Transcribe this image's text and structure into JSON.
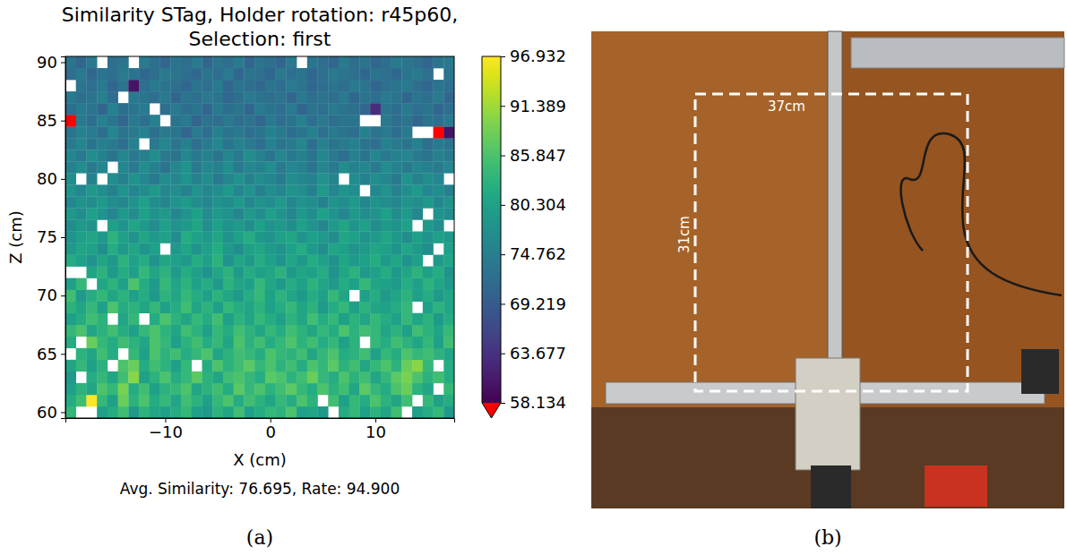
{
  "figure": {
    "panel_labels": [
      "(a)",
      "(b)"
    ]
  },
  "chart_data": {
    "type": "heatmap",
    "title": "Similarity STag, Holder rotation: r45p60,\nSelection: first",
    "x_label": "X (cm)",
    "y_label": "Z (cm)",
    "annotation": "Avg. Similarity: 76.695, Rate: 94.900",
    "x": [
      -19,
      -18,
      -17,
      -16,
      -15,
      -14,
      -13,
      -12,
      -11,
      -10,
      -9,
      -8,
      -7,
      -6,
      -5,
      -4,
      -3,
      -2,
      -1,
      0,
      1,
      2,
      3,
      4,
      5,
      6,
      7,
      8,
      9,
      10,
      11,
      12,
      13,
      14,
      15,
      16,
      17
    ],
    "y": [
      60,
      61,
      62,
      63,
      64,
      65,
      66,
      67,
      68,
      69,
      70,
      71,
      72,
      73,
      74,
      75,
      76,
      77,
      78,
      79,
      80,
      81,
      82,
      83,
      84,
      85,
      86,
      87,
      88,
      89,
      90
    ],
    "cells": [
      [
        84,
        null,
        null,
        80,
        82,
        85,
        79,
        83,
        81,
        80,
        82,
        84,
        80,
        79,
        83,
        81,
        85,
        80,
        82,
        84,
        83,
        86,
        80,
        81,
        79,
        null,
        82,
        84,
        80,
        83,
        81,
        85,
        null,
        80,
        82,
        84,
        79
      ],
      [
        82,
        85,
        97,
        84,
        80,
        88,
        83,
        86,
        82,
        84,
        81,
        85,
        83,
        80,
        84,
        86,
        82,
        85,
        83,
        81,
        84,
        82,
        86,
        83,
        null,
        85,
        80,
        84,
        82,
        86,
        83,
        81,
        85,
        null,
        84,
        80,
        82
      ],
      [
        80,
        83,
        81,
        86,
        84,
        89,
        82,
        85,
        80,
        83,
        84,
        86,
        81,
        83,
        85,
        82,
        87,
        84,
        86,
        83,
        85,
        87,
        84,
        82,
        86,
        83,
        85,
        81,
        87,
        84,
        82,
        86,
        88,
        83,
        81,
        null,
        84
      ],
      [
        79,
        null,
        82,
        84,
        81,
        85,
        90,
        80,
        83,
        86,
        82,
        84,
        87,
        83,
        81,
        85,
        86,
        84,
        82,
        87,
        86,
        83,
        85,
        88,
        84,
        82,
        86,
        83,
        85,
        81,
        84,
        87,
        89,
        86,
        83,
        85,
        82
      ],
      [
        81,
        84,
        80,
        83,
        null,
        86,
        88,
        82,
        85,
        83,
        80,
        84,
        null,
        82,
        86,
        83,
        85,
        87,
        84,
        86,
        83,
        85,
        82,
        86,
        84,
        87,
        83,
        85,
        81,
        84,
        86,
        83,
        88,
        90,
        84,
        null,
        82
      ],
      [
        null,
        83,
        81,
        85,
        82,
        null,
        84,
        80,
        86,
        83,
        85,
        82,
        84,
        86,
        81,
        83,
        85,
        84,
        82,
        86,
        84,
        83,
        85,
        81,
        84,
        86,
        82,
        83,
        85,
        80,
        84,
        82,
        86,
        84,
        85,
        83,
        81
      ],
      [
        82,
        null,
        88,
        84,
        82,
        85,
        83,
        81,
        86,
        84,
        80,
        83,
        85,
        82,
        84,
        81,
        86,
        83,
        85,
        82,
        84,
        86,
        83,
        85,
        82,
        84,
        80,
        83,
        null,
        84,
        82,
        85,
        83,
        81,
        84,
        80,
        85
      ],
      [
        84,
        86,
        81,
        83,
        85,
        82,
        80,
        84,
        86,
        83,
        81,
        85,
        83,
        80,
        84,
        82,
        85,
        83,
        81,
        84,
        82,
        85,
        83,
        81,
        84,
        82,
        86,
        83,
        85,
        84,
        81,
        83,
        80,
        85,
        83,
        81,
        84
      ],
      [
        80,
        82,
        85,
        83,
        null,
        81,
        84,
        null,
        82,
        86,
        83,
        81,
        84,
        82,
        85,
        80,
        83,
        81,
        84,
        82,
        80,
        83,
        81,
        85,
        82,
        84,
        80,
        83,
        81,
        84,
        82,
        80,
        84,
        81,
        83,
        79,
        82
      ],
      [
        83,
        81,
        84,
        80,
        86,
        82,
        83,
        81,
        84,
        80,
        82,
        85,
        81,
        83,
        80,
        84,
        82,
        81,
        83,
        80,
        82,
        84,
        81,
        83,
        79,
        82,
        84,
        80,
        83,
        81,
        80,
        82,
        84,
        null,
        80,
        83,
        81
      ],
      [
        85,
        79,
        82,
        84,
        81,
        83,
        80,
        82,
        79,
        83,
        81,
        84,
        82,
        80,
        83,
        81,
        79,
        82,
        84,
        80,
        83,
        81,
        79,
        82,
        80,
        84,
        81,
        null,
        80,
        82,
        79,
        81,
        83,
        80,
        82,
        79,
        81
      ],
      [
        80,
        84,
        null,
        81,
        83,
        80,
        86,
        82,
        79,
        84,
        81,
        83,
        80,
        82,
        79,
        83,
        81,
        80,
        84,
        81,
        79,
        82,
        80,
        83,
        81,
        79,
        82,
        80,
        84,
        81,
        80,
        79,
        82,
        80,
        83,
        81,
        79
      ],
      [
        null,
        null,
        81,
        83,
        79,
        82,
        80,
        84,
        81,
        83,
        79,
        82,
        80,
        78,
        81,
        83,
        79,
        82,
        80,
        81,
        83,
        79,
        81,
        80,
        82,
        78,
        81,
        83,
        79,
        80,
        82,
        79,
        81,
        83,
        80,
        82,
        78
      ],
      [
        82,
        80,
        78,
        81,
        79,
        83,
        80,
        82,
        78,
        81,
        80,
        79,
        82,
        80,
        83,
        78,
        81,
        79,
        82,
        80,
        78,
        81,
        79,
        82,
        80,
        78,
        81,
        79,
        80,
        82,
        79,
        81,
        78,
        80,
        null,
        79,
        81
      ],
      [
        79,
        81,
        80,
        77,
        82,
        79,
        81,
        78,
        80,
        null,
        79,
        81,
        78,
        80,
        82,
        79,
        77,
        80,
        81,
        79,
        78,
        80,
        82,
        79,
        77,
        81,
        80,
        78,
        79,
        81,
        80,
        78,
        81,
        79,
        77,
        null,
        80
      ],
      [
        78,
        80,
        81,
        79,
        83,
        80,
        78,
        81,
        79,
        80,
        77,
        82,
        80,
        79,
        81,
        78,
        80,
        82,
        79,
        78,
        80,
        81,
        78,
        80,
        79,
        77,
        81,
        80,
        78,
        79,
        81,
        79,
        77,
        80,
        78,
        80,
        79
      ],
      [
        77,
        79,
        78,
        null,
        80,
        78,
        81,
        79,
        77,
        80,
        78,
        79,
        81,
        77,
        80,
        78,
        79,
        77,
        80,
        78,
        79,
        77,
        80,
        78,
        76,
        79,
        81,
        78,
        80,
        77,
        79,
        78,
        80,
        null,
        79,
        77,
        null
      ],
      [
        79,
        77,
        80,
        78,
        76,
        79,
        77,
        80,
        78,
        79,
        76,
        78,
        80,
        77,
        79,
        78,
        76,
        79,
        77,
        80,
        78,
        76,
        79,
        77,
        80,
        78,
        76,
        79,
        77,
        78,
        80,
        77,
        79,
        76,
        null,
        78,
        77
      ],
      [
        76,
        78,
        77,
        79,
        77,
        76,
        78,
        80,
        77,
        76,
        78,
        79,
        77,
        76,
        78,
        77,
        79,
        76,
        78,
        77,
        79,
        76,
        78,
        77,
        75,
        78,
        77,
        79,
        76,
        78,
        77,
        76,
        78,
        77,
        79,
        76,
        78
      ],
      [
        78,
        76,
        79,
        77,
        75,
        78,
        76,
        77,
        79,
        76,
        77,
        75,
        78,
        76,
        77,
        79,
        76,
        78,
        75,
        77,
        76,
        78,
        77,
        75,
        79,
        76,
        78,
        77,
        null,
        76,
        78,
        75,
        77,
        79,
        76,
        77,
        75
      ],
      [
        77,
        null,
        75,
        null,
        77,
        75,
        78,
        76,
        74,
        77,
        76,
        78,
        75,
        77,
        74,
        76,
        78,
        75,
        77,
        76,
        74,
        77,
        76,
        75,
        78,
        76,
        null,
        77,
        75,
        77,
        76,
        74,
        78,
        75,
        77,
        76,
        null
      ],
      [
        75,
        77,
        74,
        76,
        null,
        76,
        74,
        77,
        75,
        73,
        76,
        78,
        74,
        76,
        75,
        77,
        74,
        76,
        75,
        77,
        74,
        76,
        75,
        73,
        76,
        74,
        77,
        75,
        76,
        74,
        77,
        75,
        74,
        76,
        75,
        74,
        76
      ],
      [
        76,
        74,
        77,
        75,
        73,
        76,
        74,
        75,
        77,
        74,
        73,
        76,
        74,
        75,
        73,
        76,
        74,
        77,
        75,
        73,
        76,
        74,
        75,
        73,
        76,
        74,
        72,
        75,
        73,
        76,
        74,
        75,
        76,
        74,
        73,
        75,
        74
      ],
      [
        74,
        76,
        73,
        75,
        74,
        72,
        75,
        null,
        74,
        76,
        73,
        75,
        72,
        74,
        76,
        73,
        75,
        74,
        72,
        75,
        73,
        74,
        76,
        72,
        75,
        73,
        74,
        75,
        73,
        72,
        75,
        74,
        73,
        75,
        72,
        74,
        73
      ],
      [
        73,
        75,
        74,
        72,
        76,
        73,
        74,
        75,
        72,
        74,
        73,
        71,
        74,
        72,
        75,
        73,
        74,
        72,
        73,
        75,
        74,
        72,
        73,
        75,
        72,
        74,
        73,
        72,
        75,
        73,
        74,
        72,
        74,
        null,
        null,
        55,
        60
      ],
      [
        55,
        74,
        72,
        75,
        73,
        71,
        74,
        72,
        75,
        null,
        73,
        74,
        71,
        73,
        72,
        74,
        72,
        73,
        71,
        74,
        72,
        73,
        75,
        72,
        74,
        72,
        73,
        73,
        null,
        null,
        74,
        72,
        73,
        71,
        73,
        72,
        74
      ],
      [
        72,
        74,
        73,
        71,
        75,
        72,
        73,
        74,
        null,
        72,
        74,
        72,
        73,
        71,
        74,
        72,
        73,
        71,
        74,
        73,
        72,
        74,
        71,
        73,
        72,
        74,
        73,
        72,
        71,
        63,
        73,
        72,
        74,
        72,
        73,
        71,
        72
      ],
      [
        74,
        72,
        73,
        75,
        72,
        null,
        74,
        73,
        72,
        74,
        71,
        73,
        72,
        74,
        73,
        71,
        72,
        74,
        73,
        72,
        73,
        71,
        74,
        72,
        73,
        72,
        74,
        71,
        73,
        72,
        74,
        73,
        71,
        73,
        72,
        74,
        71
      ],
      [
        null,
        73,
        72,
        74,
        71,
        73,
        60,
        72,
        74,
        73,
        72,
        71,
        73,
        72,
        74,
        71,
        73,
        72,
        71,
        73,
        72,
        74,
        73,
        71,
        72,
        73,
        72,
        74,
        73,
        71,
        72,
        73,
        74,
        72,
        71,
        73,
        72
      ],
      [
        72,
        74,
        71,
        73,
        72,
        74,
        73,
        71,
        72,
        74,
        73,
        72,
        71,
        73,
        72,
        74,
        71,
        73,
        72,
        71,
        74,
        72,
        73,
        71,
        72,
        74,
        73,
        72,
        71,
        73,
        72,
        71,
        73,
        74,
        72,
        null,
        73
      ],
      [
        73,
        71,
        74,
        null,
        72,
        73,
        null,
        74,
        72,
        71,
        73,
        72,
        74,
        71,
        73,
        72,
        74,
        71,
        73,
        72,
        71,
        74,
        null,
        73,
        72,
        71,
        74,
        72,
        73,
        71,
        72,
        74,
        73,
        72,
        71,
        73,
        74
      ]
    ],
    "xlim": [
      -19.5,
      17.5
    ],
    "ylim": [
      59.5,
      90.5
    ],
    "xticks": [
      {
        "value": -10,
        "label": "−10"
      },
      0,
      10
    ],
    "yticks": [
      60,
      65,
      70,
      75,
      80,
      85,
      90
    ],
    "colorbar": {
      "range": [
        58.134,
        96.932
      ],
      "ticks": [
        58.134,
        63.677,
        69.219,
        74.762,
        80.304,
        85.847,
        91.389,
        96.932
      ]
    }
  },
  "photo": {
    "width_label": "37cm",
    "height_label": "31cm"
  }
}
